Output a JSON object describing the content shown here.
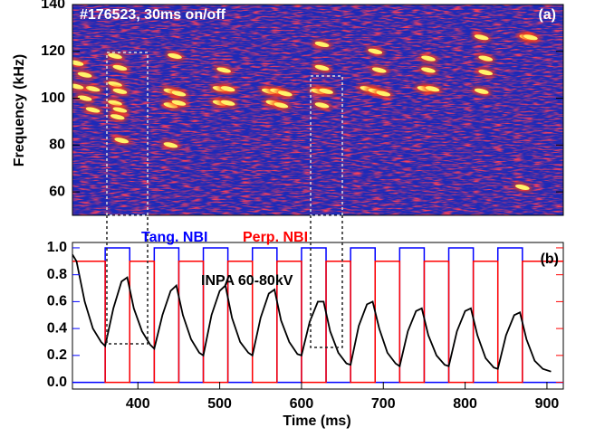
{
  "chart_data": [
    {
      "type": "spectrogram",
      "title": "#176523, 30ms on/off",
      "annotation": "(a)",
      "ylabel": "Frequency (kHz)",
      "xlim": [
        320,
        920
      ],
      "ylim": [
        50,
        140
      ],
      "yticks": [
        60,
        80,
        100,
        120,
        140
      ],
      "x": [
        325,
        335,
        345,
        325,
        335,
        345,
        372,
        378,
        372,
        378,
        372,
        378,
        375,
        380,
        440,
        450,
        440,
        450,
        445,
        440,
        500,
        510,
        500,
        510,
        505,
        560,
        570,
        580,
        565,
        575,
        620,
        630,
        625,
        625,
        625,
        680,
        690,
        700,
        695,
        690,
        750,
        760,
        755,
        755,
        820,
        825,
        825,
        820,
        875,
        880,
        870
      ],
      "y": [
        115,
        110,
        104,
        105,
        100,
        95,
        118,
        113,
        106,
        103,
        98,
        95,
        92,
        82,
        103,
        102,
        97,
        98,
        118,
        80,
        104,
        104,
        98,
        98,
        112,
        103,
        103,
        102,
        98,
        97,
        103,
        103,
        97,
        113,
        123,
        104,
        103,
        102,
        112,
        120,
        104,
        104,
        112,
        117,
        103,
        111,
        117,
        126,
        126,
        126,
        62
      ]
    },
    {
      "type": "line",
      "annotation": "(b)",
      "xlabel": "Time (ms)",
      "xlim": [
        320,
        920
      ],
      "ylim": [
        -0.05,
        1.04
      ],
      "xticks": [
        400,
        500,
        600,
        700,
        800,
        900
      ],
      "yticks": [
        {
          "value": 0,
          "label": "0.0"
        },
        0.2,
        0.4,
        0.6,
        0.8,
        {
          "value": 1,
          "label": "1.0"
        }
      ],
      "series": [
        {
          "name": "Tang. NBI",
          "color": "#0000ff",
          "x": [
            320,
            360,
            360,
            390,
            390,
            420,
            420,
            450,
            450,
            480,
            480,
            510,
            510,
            540,
            540,
            570,
            570,
            600,
            600,
            630,
            630,
            660,
            660,
            690,
            690,
            720,
            720,
            750,
            750,
            780,
            780,
            810,
            810,
            840,
            840,
            870,
            870,
            920
          ],
          "values": [
            0,
            0,
            1,
            1,
            0,
            0,
            1,
            1,
            0,
            0,
            1,
            1,
            0,
            0,
            1,
            1,
            0,
            0,
            1,
            1,
            0,
            0,
            1,
            1,
            0,
            0,
            1,
            1,
            0,
            0,
            1,
            1,
            0,
            0,
            1,
            1,
            0,
            0
          ]
        },
        {
          "name": "Perp. NBI",
          "color": "#ff0000",
          "x": [
            320,
            360,
            360,
            390,
            390,
            420,
            420,
            450,
            450,
            480,
            480,
            510,
            510,
            540,
            540,
            570,
            570,
            600,
            600,
            630,
            630,
            660,
            660,
            690,
            690,
            720,
            720,
            750,
            750,
            780,
            780,
            810,
            810,
            840,
            840,
            870,
            870,
            920
          ],
          "values": [
            0.9,
            0.9,
            0,
            0,
            0.9,
            0.9,
            0,
            0,
            0.9,
            0.9,
            0,
            0,
            0.9,
            0.9,
            0,
            0,
            0.9,
            0.9,
            0,
            0,
            0.9,
            0.9,
            0,
            0,
            0.9,
            0.9,
            0,
            0,
            0.9,
            0.9,
            0,
            0,
            0.9,
            0.9,
            0,
            0,
            0.9,
            0.9
          ]
        },
        {
          "name": "INPA 60-80kV",
          "color": "#000000",
          "x": [
            320,
            325,
            335,
            345,
            355,
            360,
            370,
            380,
            387,
            395,
            405,
            415,
            420,
            430,
            440,
            447,
            455,
            465,
            475,
            480,
            490,
            500,
            507,
            515,
            525,
            535,
            540,
            550,
            560,
            567,
            575,
            585,
            595,
            600,
            610,
            620,
            627,
            635,
            645,
            655,
            660,
            670,
            680,
            687,
            695,
            705,
            715,
            720,
            730,
            740,
            747,
            755,
            765,
            775,
            780,
            790,
            800,
            807,
            815,
            825,
            835,
            840,
            850,
            860,
            867,
            875,
            885,
            895,
            905
          ],
          "values": [
            0.95,
            0.9,
            0.6,
            0.4,
            0.3,
            0.27,
            0.55,
            0.75,
            0.78,
            0.55,
            0.38,
            0.28,
            0.25,
            0.5,
            0.68,
            0.72,
            0.5,
            0.32,
            0.22,
            0.2,
            0.5,
            0.68,
            0.72,
            0.48,
            0.3,
            0.22,
            0.2,
            0.48,
            0.66,
            0.69,
            0.46,
            0.3,
            0.21,
            0.2,
            0.45,
            0.6,
            0.6,
            0.38,
            0.22,
            0.14,
            0.13,
            0.42,
            0.58,
            0.6,
            0.4,
            0.22,
            0.14,
            0.12,
            0.38,
            0.53,
            0.55,
            0.35,
            0.2,
            0.13,
            0.12,
            0.38,
            0.53,
            0.55,
            0.35,
            0.18,
            0.11,
            0.1,
            0.35,
            0.5,
            0.52,
            0.32,
            0.16,
            0.1,
            0.08
          ]
        }
      ]
    }
  ]
}
